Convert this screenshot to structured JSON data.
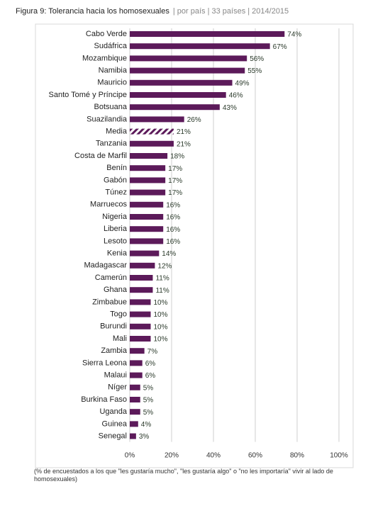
{
  "chart_data": {
    "type": "bar",
    "orientation": "horizontal",
    "title": "Figura 9: Tolerancia hacia los homosexuales",
    "subtitle": "| por país | 33 países | 2014/2015",
    "categories": [
      "Cabo Verde",
      "Sudáfrica",
      "Mozambique",
      "Namibia",
      "Mauricio",
      "Santo Tomé y Príncipe",
      "Botsuana",
      "Suazilandia",
      "Media",
      "Tanzania",
      "Costa de Marfil",
      "Benín",
      "Gabón",
      "Túnez",
      "Marruecos",
      "Nigeria",
      "Liberia",
      "Lesoto",
      "Kenia",
      "Madagascar",
      "Camerún",
      "Ghana",
      "Zimbabue",
      "Togo",
      "Burundi",
      "Mali",
      "Zambia",
      "Sierra Leona",
      "Malaui",
      "Níger",
      "Burkina Faso",
      "Uganda",
      "Guinea",
      "Senegal"
    ],
    "values": [
      74,
      67,
      56,
      55,
      49,
      46,
      43,
      26,
      21,
      21,
      18,
      17,
      17,
      17,
      16,
      16,
      16,
      16,
      14,
      12,
      11,
      11,
      10,
      10,
      10,
      10,
      7,
      6,
      6,
      5,
      5,
      5,
      4,
      3
    ],
    "value_labels": [
      "74%",
      "67%",
      "56%",
      "55%",
      "49%",
      "46%",
      "43%",
      "26%",
      "21%",
      "21%",
      "18%",
      "17%",
      "17%",
      "17%",
      "16%",
      "16%",
      "16%",
      "16%",
      "14%",
      "12%",
      "11%",
      "11%",
      "10%",
      "10%",
      "10%",
      "10%",
      "7%",
      "6%",
      "6%",
      "5%",
      "5%",
      "5%",
      "4%",
      "3%"
    ],
    "color": "#5c1a5a",
    "hatched_index": 8,
    "xlim": [
      0,
      100
    ],
    "xticks": [
      {
        "value": 0,
        "label": "0%"
      },
      {
        "value": 20,
        "label": "20%"
      },
      {
        "value": 40,
        "label": "40%"
      },
      {
        "value": 60,
        "label": "60%"
      },
      {
        "value": 80,
        "label": "80%"
      },
      {
        "value": 100,
        "label": "100%"
      }
    ],
    "grid": true,
    "note": "(% de encuestados a los que \"les gustaría mucho\", \"les gustaría algo\" o \"no les importaría\" vivir al lado de homosexuales)"
  }
}
